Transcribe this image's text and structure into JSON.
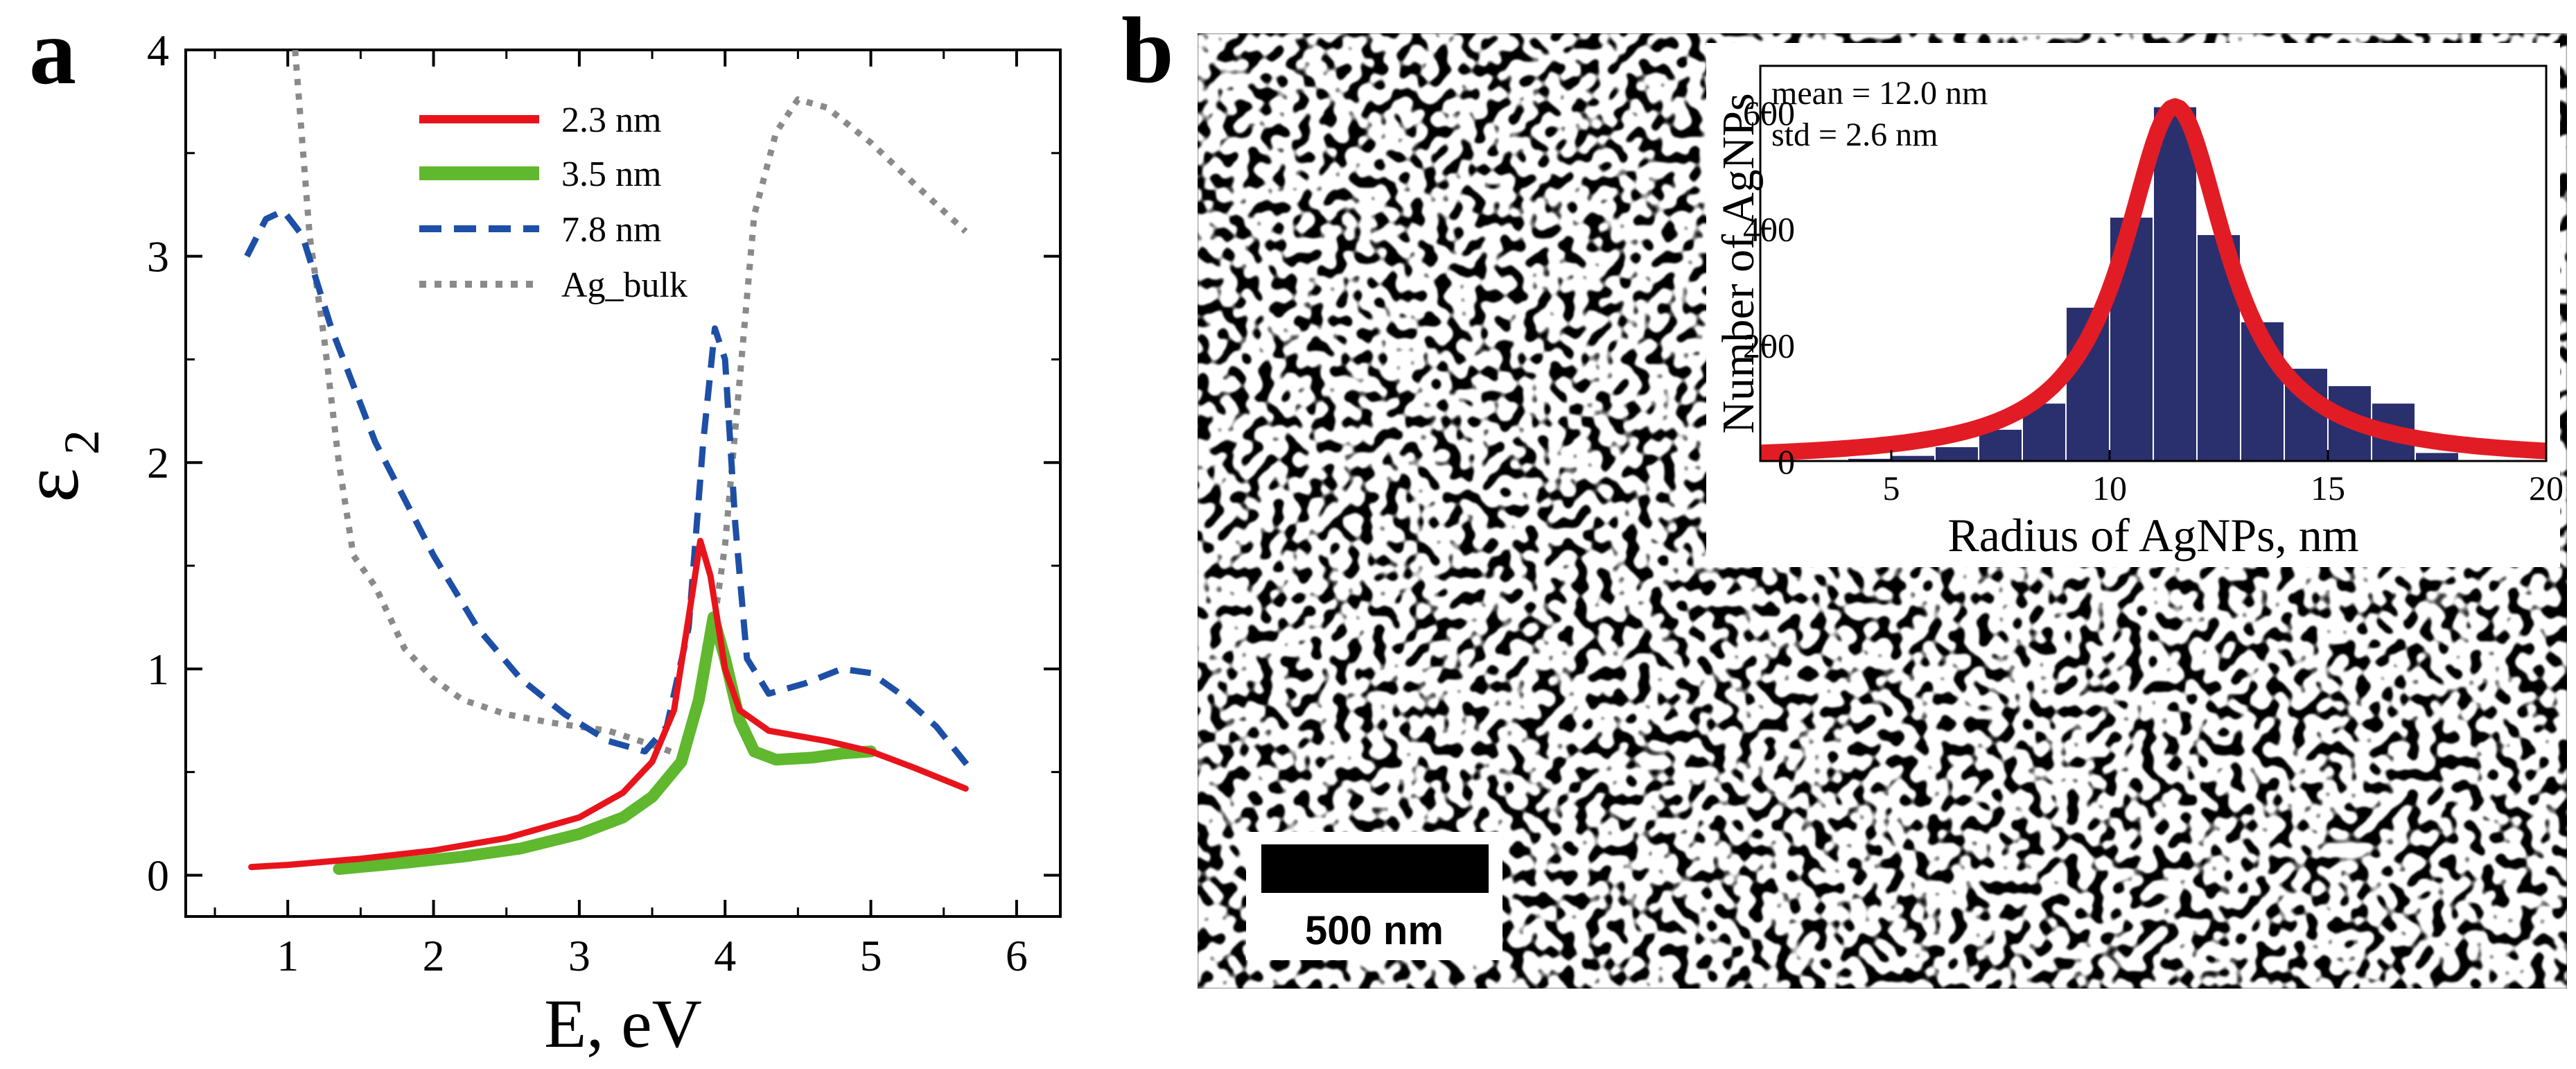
{
  "panel_labels": {
    "a": "a",
    "b": "b"
  },
  "chart_data": [
    {
      "type": "line",
      "panel": "a",
      "xlabel": "E, eV",
      "ylabel_main": "ε",
      "ylabel_sub": "2",
      "xlim": [
        0.3,
        6.3
      ],
      "ylim": [
        -0.2,
        4.0
      ],
      "xticks": [
        1,
        2,
        3,
        4,
        5,
        6
      ],
      "yticks": [
        0,
        1,
        2,
        3,
        4
      ],
      "xtick_labels": [
        "1",
        "2",
        "3",
        "4",
        "5",
        "6"
      ],
      "ytick_labels": [
        "0",
        "1",
        "2",
        "3",
        "4"
      ],
      "legend_position": "top-center",
      "series": [
        {
          "name": "2.3 nm",
          "color": "#e8141c",
          "style": "solid",
          "points": [
            [
              0.75,
              0.04
            ],
            [
              1.0,
              0.05
            ],
            [
              1.5,
              0.08
            ],
            [
              2.0,
              0.12
            ],
            [
              2.5,
              0.18
            ],
            [
              3.0,
              0.28
            ],
            [
              3.3,
              0.4
            ],
            [
              3.5,
              0.55
            ],
            [
              3.65,
              0.8
            ],
            [
              3.75,
              1.25
            ],
            [
              3.83,
              1.62
            ],
            [
              3.9,
              1.45
            ],
            [
              4.0,
              1.0
            ],
            [
              4.1,
              0.8
            ],
            [
              4.3,
              0.7
            ],
            [
              4.7,
              0.65
            ],
            [
              5.0,
              0.6
            ],
            [
              5.3,
              0.52
            ],
            [
              5.65,
              0.42
            ]
          ]
        },
        {
          "name": "3.5 nm",
          "color": "#5fb82e",
          "style": "thick",
          "points": [
            [
              1.35,
              0.03
            ],
            [
              1.8,
              0.06
            ],
            [
              2.2,
              0.09
            ],
            [
              2.6,
              0.13
            ],
            [
              3.0,
              0.2
            ],
            [
              3.3,
              0.28
            ],
            [
              3.5,
              0.38
            ],
            [
              3.7,
              0.55
            ],
            [
              3.82,
              0.85
            ],
            [
              3.92,
              1.25
            ],
            [
              4.0,
              1.05
            ],
            [
              4.1,
              0.75
            ],
            [
              4.2,
              0.6
            ],
            [
              4.35,
              0.56
            ],
            [
              4.6,
              0.57
            ],
            [
              4.8,
              0.59
            ],
            [
              5.0,
              0.6
            ]
          ]
        },
        {
          "name": "7.8 nm",
          "color": "#1d4fa6",
          "style": "dashed",
          "points": [
            [
              0.72,
              3.0
            ],
            [
              0.85,
              3.18
            ],
            [
              0.97,
              3.22
            ],
            [
              1.1,
              3.1
            ],
            [
              1.3,
              2.65
            ],
            [
              1.6,
              2.1
            ],
            [
              2.0,
              1.55
            ],
            [
              2.3,
              1.2
            ],
            [
              2.6,
              0.95
            ],
            [
              2.9,
              0.78
            ],
            [
              3.2,
              0.65
            ],
            [
              3.45,
              0.6
            ],
            [
              3.6,
              0.72
            ],
            [
              3.75,
              1.2
            ],
            [
              3.85,
              2.1
            ],
            [
              3.93,
              2.65
            ],
            [
              4.0,
              2.5
            ],
            [
              4.07,
              1.7
            ],
            [
              4.15,
              1.05
            ],
            [
              4.3,
              0.88
            ],
            [
              4.55,
              0.93
            ],
            [
              4.8,
              1.0
            ],
            [
              5.0,
              0.98
            ],
            [
              5.2,
              0.88
            ],
            [
              5.45,
              0.72
            ],
            [
              5.7,
              0.5
            ]
          ]
        },
        {
          "name": "Ag_bulk",
          "color": "#8a8a8a",
          "style": "dotted",
          "points": [
            [
              1.05,
              4.0
            ],
            [
              1.15,
              3.1
            ],
            [
              1.25,
              2.6
            ],
            [
              1.35,
              2.0
            ],
            [
              1.45,
              1.55
            ],
            [
              1.6,
              1.4
            ],
            [
              1.8,
              1.1
            ],
            [
              2.0,
              0.95
            ],
            [
              2.2,
              0.85
            ],
            [
              2.5,
              0.78
            ],
            [
              2.8,
              0.74
            ],
            [
              3.2,
              0.7
            ],
            [
              3.55,
              0.62
            ],
            [
              3.7,
              0.58
            ],
            [
              3.8,
              0.75
            ],
            [
              3.9,
              1.1
            ],
            [
              4.0,
              1.6
            ],
            [
              4.1,
              2.4
            ],
            [
              4.2,
              3.2
            ],
            [
              4.35,
              3.6
            ],
            [
              4.5,
              3.76
            ],
            [
              4.7,
              3.72
            ],
            [
              5.0,
              3.55
            ],
            [
              5.3,
              3.35
            ],
            [
              5.65,
              3.12
            ]
          ]
        }
      ]
    },
    {
      "type": "bar",
      "panel": "b",
      "inset": true,
      "xlabel": "Radius of AgNPs, nm",
      "ylabel": "Number of AgNPs",
      "xlim": [
        2,
        20
      ],
      "ylim": [
        0,
        680
      ],
      "xticks": [
        5,
        10,
        15,
        20
      ],
      "yticks": [
        0,
        200,
        400,
        600
      ],
      "xtick_labels": [
        "5",
        "10",
        "15",
        "20"
      ],
      "ytick_labels": [
        "0",
        "200",
        "400",
        "600"
      ],
      "bar_width": 1,
      "bar_color": "#2a2f6e",
      "bars_x": [
        3.5,
        4.5,
        5.5,
        6.5,
        7.5,
        8.5,
        9.5,
        10.5,
        11.5,
        12.5,
        13.5,
        14.5,
        15.5,
        16.5,
        17.5,
        18.5
      ],
      "bars_y": [
        3,
        5,
        10,
        25,
        55,
        100,
        265,
        420,
        610,
        390,
        240,
        160,
        130,
        100,
        15,
        3
      ],
      "fit": {
        "type": "lorentzian",
        "center": 11.5,
        "peak": 610,
        "hwhm": 1.45,
        "color": "#e21c25"
      },
      "annotations": [
        "mean = 12.0 nm",
        "std = 2.6 nm"
      ]
    }
  ],
  "sem_image": {
    "scale_bar_label": "500 nm"
  }
}
